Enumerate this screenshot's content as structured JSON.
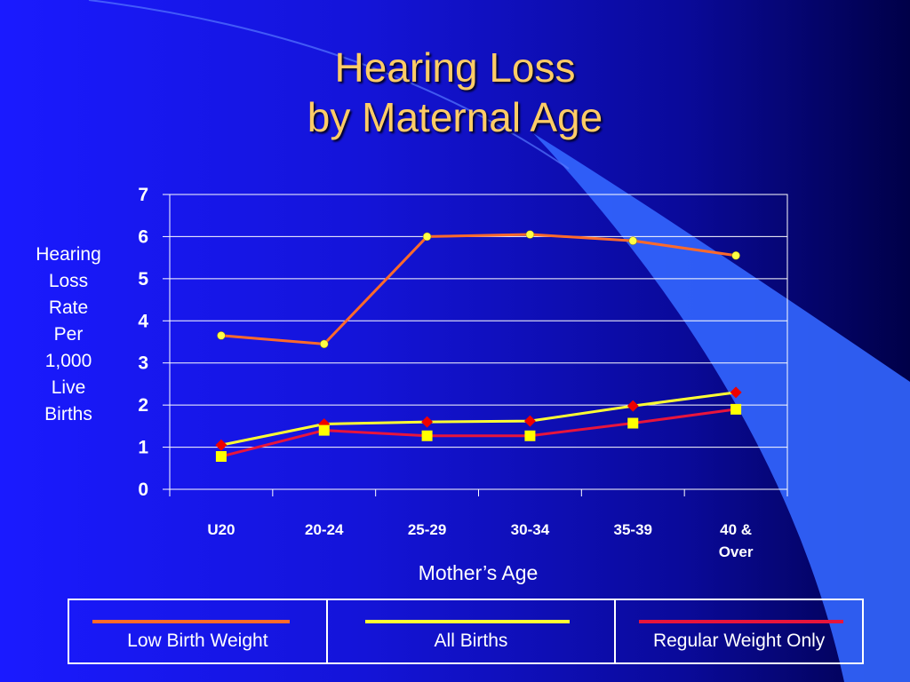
{
  "title": {
    "line1": "Hearing Loss",
    "line2": "by Maternal Age"
  },
  "y_axis_label_lines": [
    "Hearing",
    "Loss",
    "Rate",
    "Per",
    "1,000",
    "Live",
    "Births"
  ],
  "chart_data": {
    "type": "line",
    "title": "Hearing Loss by Maternal Age",
    "xlabel": "Mother’s Age",
    "ylabel": "Hearing Loss Rate Per 1,000 Live Births",
    "categories": [
      "U20",
      "20-24",
      "25-29",
      "30-34",
      "35-39",
      "40 & Over"
    ],
    "ylim": [
      0,
      7
    ],
    "yticks": [
      0,
      1,
      2,
      3,
      4,
      5,
      6,
      7
    ],
    "grid": true,
    "legend": "bottom",
    "series": [
      {
        "name": "Low Birth Weight",
        "values": [
          3.65,
          3.45,
          6.0,
          6.05,
          5.9,
          5.55
        ],
        "color": "#ff6a2a",
        "marker": "circle",
        "marker_color": "#ffff44"
      },
      {
        "name": "All Births",
        "values": [
          1.05,
          1.55,
          1.6,
          1.62,
          1.98,
          2.3
        ],
        "color": "#ffff33",
        "marker": "diamond",
        "marker_color": "#ee0000"
      },
      {
        "name": "Regular Weight Only",
        "values": [
          0.78,
          1.4,
          1.27,
          1.27,
          1.57,
          1.9
        ],
        "color": "#e8153c",
        "marker": "square",
        "marker_color": "#ffff00"
      }
    ]
  }
}
